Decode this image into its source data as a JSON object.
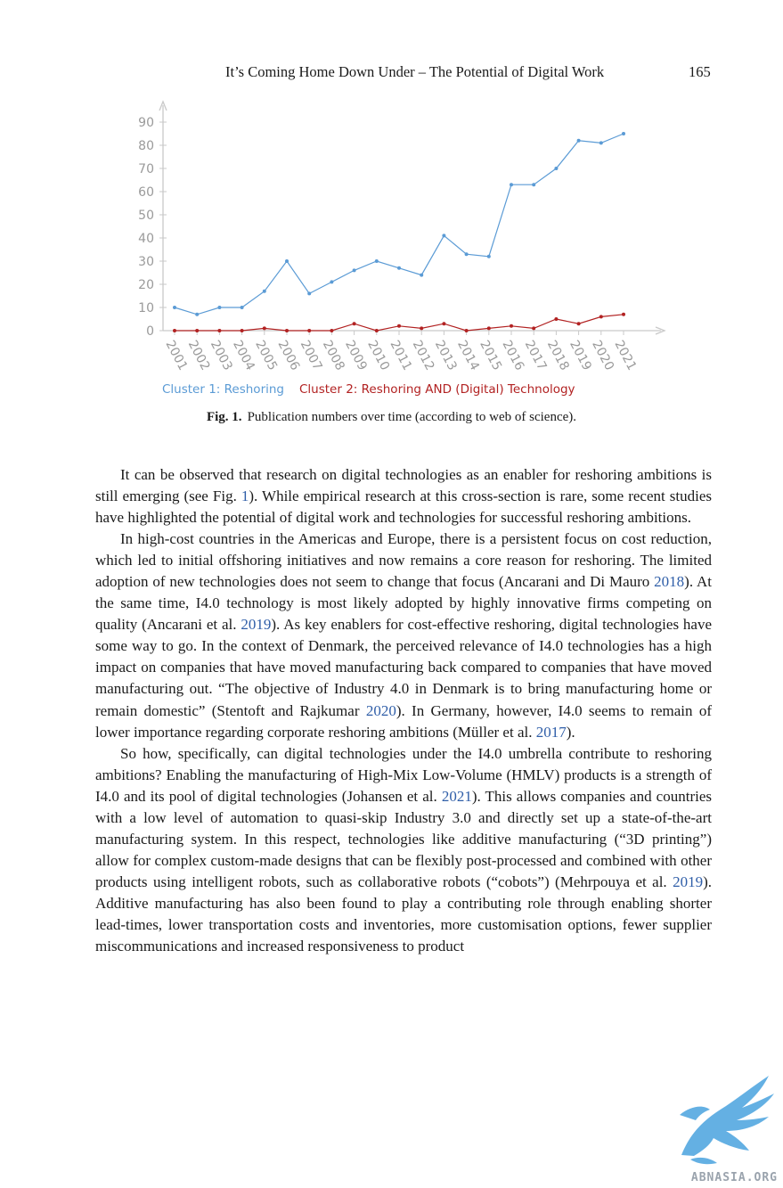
{
  "header": {
    "running_title": "It’s Coming Home Down Under – The Potential of Digital Work",
    "page_number": "165"
  },
  "figure": {
    "label": "Fig. 1.",
    "caption": "Publication numbers over time (according to web of science)."
  },
  "chart_data": {
    "type": "line",
    "x": [
      "2001",
      "2002",
      "2003",
      "2004",
      "2005",
      "2006",
      "2007",
      "2008",
      "2009",
      "2010",
      "2011",
      "2012",
      "2013",
      "2014",
      "2015",
      "2016",
      "2017",
      "2018",
      "2019",
      "2020",
      "2021"
    ],
    "yticks": [
      0,
      10,
      20,
      30,
      40,
      50,
      60,
      70,
      80,
      90
    ],
    "ylim": [
      0,
      95
    ],
    "grid": false,
    "legend_position": "bottom",
    "series": [
      {
        "name": "Cluster 1: Reshoring",
        "color": "#5b9bd5",
        "values": [
          10,
          7,
          10,
          10,
          17,
          30,
          16,
          21,
          26,
          30,
          27,
          24,
          41,
          33,
          32,
          63,
          63,
          70,
          82,
          81,
          85
        ]
      },
      {
        "name": "Cluster 2: Reshoring AND (Digital) Technology",
        "color": "#b22222",
        "values": [
          0,
          0,
          0,
          0,
          1,
          0,
          0,
          0,
          3,
          0,
          2,
          1,
          3,
          0,
          1,
          2,
          1,
          5,
          3,
          6,
          7
        ]
      }
    ]
  },
  "body": {
    "p1": [
      "It can be observed that research on digital technologies as an enabler for reshoring ambitions is still emerging (see Fig. ",
      "1",
      "). While empirical research at this cross-section is rare, some recent studies have highlighted the potential of digital work and technologies for successful reshoring ambitions."
    ],
    "p2": [
      "In high-cost countries in the Americas and Europe, there is a persistent focus on cost reduction, which led to initial offshoring initiatives and now remains a core reason for reshoring. The limited adoption of new technologies does not seem to change that focus (Ancarani and Di Mauro ",
      "2018",
      "). At the same time, I4.0 technology is most likely adopted by highly innovative firms competing on quality (Ancarani et al. ",
      "2019",
      "). As key enablers for cost-effective reshoring, digital technologies have some way to go. In the context of Denmark, the perceived relevance of I4.0 technologies has a high impact on companies that have moved manufacturing back compared to companies that have moved manufacturing out. “The objective of Industry 4.0 in Denmark is to bring manufacturing home or remain domestic” (Stentoft and Rajkumar ",
      "2020",
      "). In Germany, however, I4.0 seems to remain of lower importance regarding corporate reshoring ambitions (Müller et al. ",
      "2017",
      ")."
    ],
    "p3": [
      "So how, specifically, can digital technologies under the I4.0 umbrella contribute to reshoring ambitions? Enabling the manufacturing of High-Mix Low-Volume (HMLV) products is a strength of I4.0 and its pool of digital technologies (Johansen et al. ",
      "2021",
      "). This allows companies and countries with a low level of automation to quasi-skip Industry 3.0 and directly set up a state-of-the-art manufacturing system. In this respect, technologies like additive manufacturing (“3D printing”) allow for complex custom-made designs that can be flexibly post-processed and combined with other products using intelligent robots, such as collaborative robots (“cobots”) (Mehrpouya et al. ",
      "2019",
      "). Additive manufacturing has also been found to play a contributing role through enabling shorter lead-times, lower transportation costs and inventories, more customisation options, fewer supplier miscommunications and increased responsiveness to product"
    ]
  },
  "watermark": {
    "text": "ABNASIA.ORG",
    "color": "#4aa3df"
  }
}
